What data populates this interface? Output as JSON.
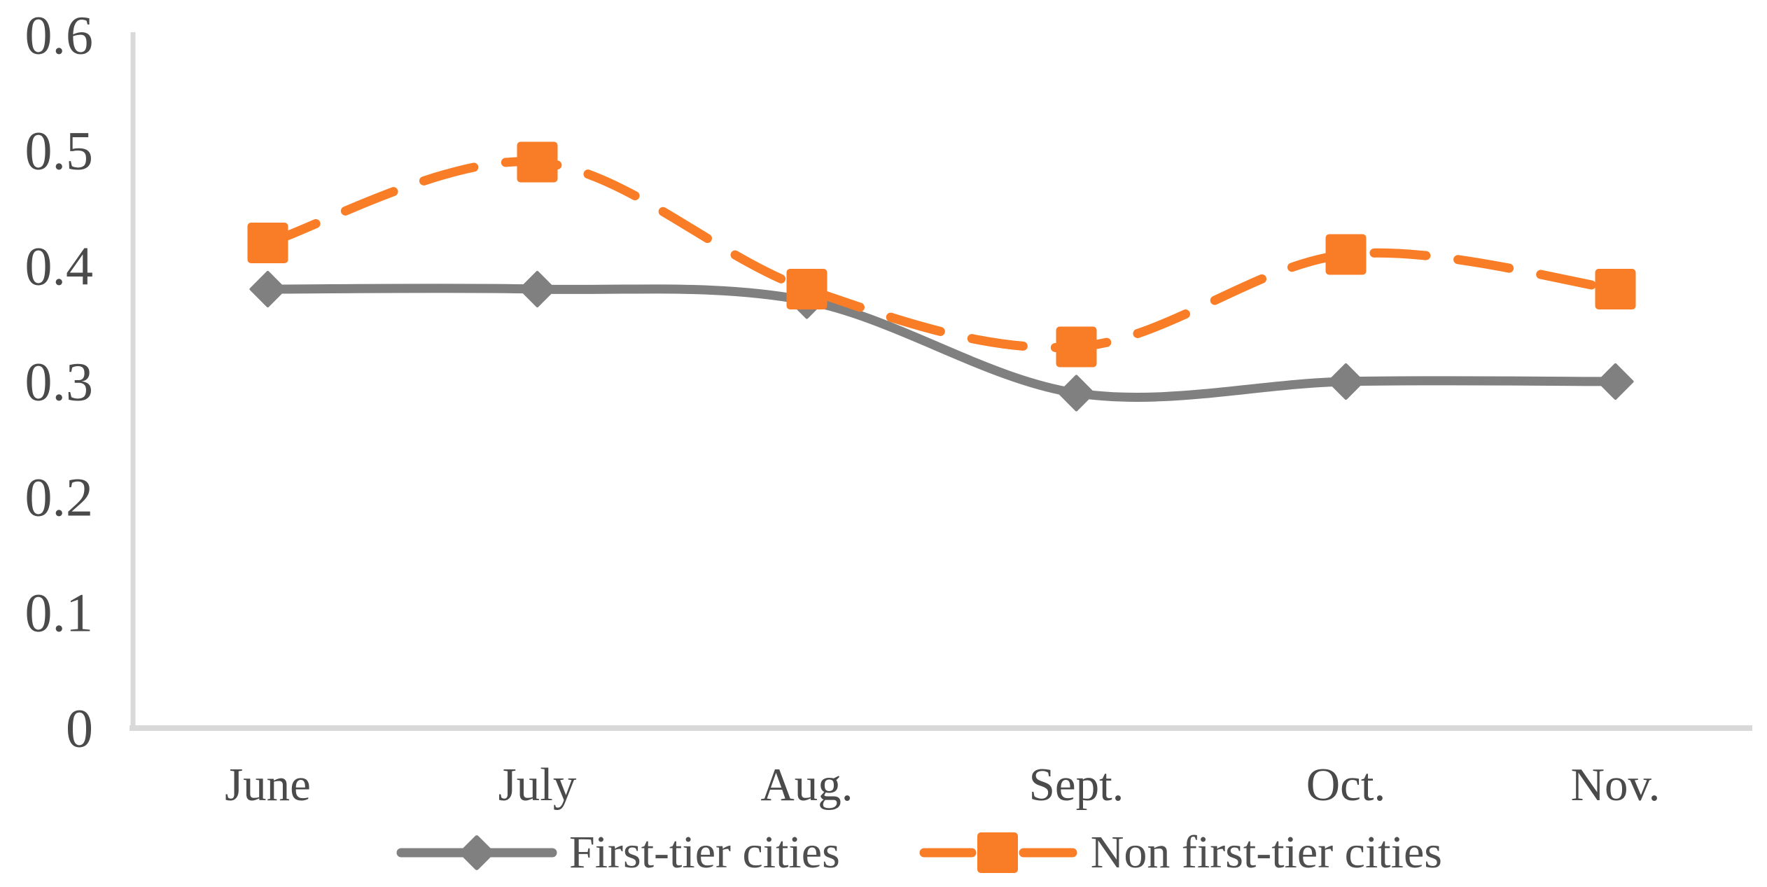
{
  "chart_data": {
    "type": "line",
    "title": "",
    "xlabel": "",
    "ylabel": "",
    "categories": [
      "June",
      "July",
      "Aug.",
      "Sept.",
      "Oct.",
      "Nov."
    ],
    "series": [
      {
        "name": "First-tier cities",
        "values": [
          0.38,
          0.38,
          0.37,
          0.29,
          0.3,
          0.3
        ],
        "color": "#808080",
        "marker": "diamond",
        "line_style": "solid"
      },
      {
        "name": "Non first-tier cities",
        "values": [
          0.42,
          0.49,
          0.38,
          0.33,
          0.41,
          0.38
        ],
        "color": "#f97d26",
        "marker": "square",
        "line_style": "dashed"
      }
    ],
    "ylim": [
      0,
      0.6
    ],
    "y_tick_step": 0.1,
    "y_ticks": [
      "0",
      "0.1",
      "0.2",
      "0.3",
      "0.4",
      "0.5",
      "0.6"
    ],
    "grid": false,
    "smooth_lines": true,
    "legend_position": "bottom",
    "axis_color": "#d9d9d9",
    "text_color": "#4a4a4a"
  }
}
